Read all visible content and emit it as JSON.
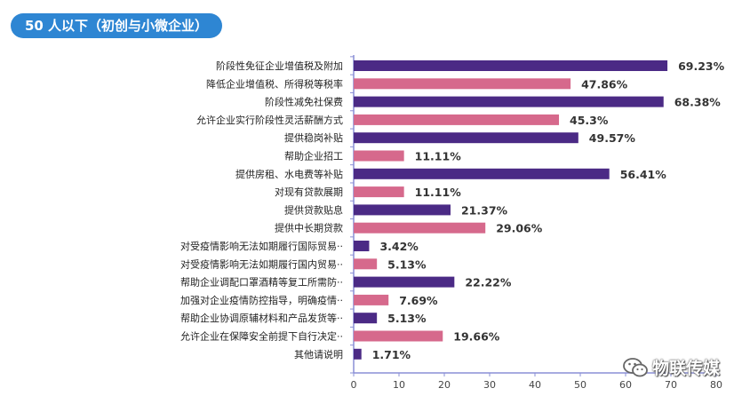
{
  "header": {
    "title": "50 人以下（初创与小微企业）"
  },
  "watermark": {
    "text": "物联传媒",
    "icon": "wechat-icon"
  },
  "colors": {
    "purple": "#4b2a85",
    "pink": "#d6698c",
    "title_bg": "#2e86d3"
  },
  "chart_data": {
    "type": "bar",
    "orientation": "horizontal",
    "title": "50 人以下（初创与小微企业）",
    "xlim": [
      0,
      80
    ],
    "xticks": [
      0,
      10,
      20,
      30,
      40,
      50,
      60,
      70,
      80
    ],
    "grid": false,
    "categories": [
      "阶段性免征企业增值税及附加",
      "降低企业增值税、所得税等税率",
      "阶段性减免社保费",
      "允许企业实行阶段性灵活薪酬方式",
      "提供稳岗补贴",
      "帮助企业招工",
      "提供房租、水电费等补贴",
      "对现有贷款展期",
      "提供贷款贴息",
      "提供中长期贷款",
      "对受疫情影响无法如期履行国际贸易··",
      "对受疫情影响无法如期履行国内贸易··",
      "帮助企业调配口罩酒精等复工所需防··",
      "加强对企业疫情防控指导，明确疫情··",
      "帮助企业协调原辅材料和产品发货等··",
      "允许企业在保障安全前提下自行决定··",
      "其他请说明"
    ],
    "values": [
      69.23,
      47.86,
      68.38,
      45.3,
      49.57,
      11.11,
      56.41,
      11.11,
      21.37,
      29.06,
      3.42,
      5.13,
      22.22,
      7.69,
      5.13,
      19.66,
      1.71
    ],
    "value_labels": [
      "69.23%",
      "47.86%",
      "68.38%",
      "45.3%",
      "49.57%",
      "11.11%",
      "56.41%",
      "11.11%",
      "21.37%",
      "29.06%",
      "3.42%",
      "5.13%",
      "22.22%",
      "7.69%",
      "5.13%",
      "19.66%",
      "1.71%"
    ],
    "bar_colors": [
      "#4b2a85",
      "#d6698c",
      "#4b2a85",
      "#d6698c",
      "#4b2a85",
      "#d6698c",
      "#4b2a85",
      "#d6698c",
      "#4b2a85",
      "#d6698c",
      "#4b2a85",
      "#d6698c",
      "#4b2a85",
      "#d6698c",
      "#4b2a85",
      "#d6698c",
      "#4b2a85"
    ]
  }
}
